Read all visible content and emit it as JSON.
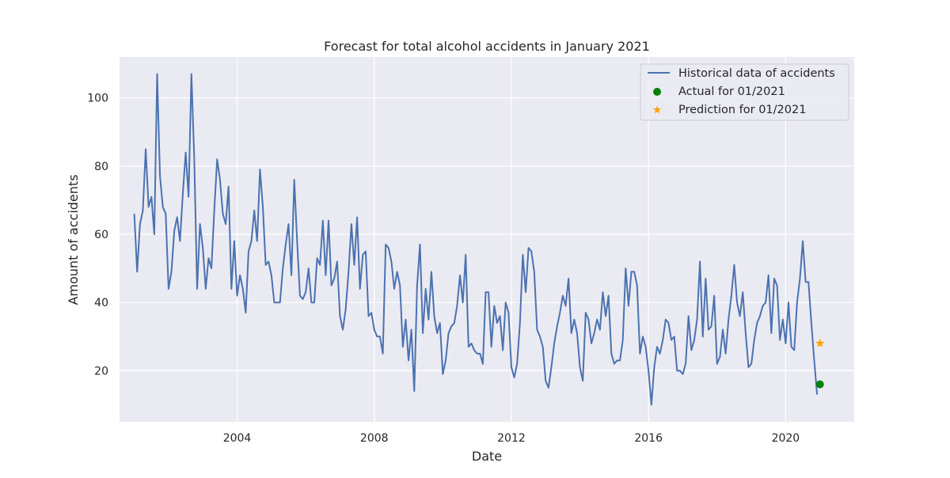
{
  "chart_data": {
    "type": "line",
    "title": "Forecast for total alcohol accidents in January 2021",
    "xlabel": "Date",
    "ylabel": "Amount of accidents",
    "x_ticks": [
      "2004",
      "2008",
      "2012",
      "2016",
      "2020"
    ],
    "y_ticks": [
      "20",
      "40",
      "60",
      "80",
      "100"
    ],
    "xlim": [
      2000.57,
      2022.0
    ],
    "ylim": [
      5.0,
      112.0
    ],
    "grid": true,
    "legend_position": "top-right",
    "start": "2001-01",
    "series": [
      {
        "name": "Historical data of accidents",
        "kind": "line",
        "color": "#4c72b0",
        "values": [
          66,
          49,
          63,
          67,
          85,
          68,
          71,
          60,
          107,
          77,
          68,
          66,
          44,
          49,
          61,
          65,
          58,
          72,
          84,
          71,
          107,
          82,
          44,
          63,
          56,
          44,
          53,
          50,
          67,
          82,
          76,
          66,
          63,
          74,
          44,
          58,
          42,
          48,
          44,
          37,
          55,
          58,
          67,
          58,
          79,
          68,
          51,
          52,
          48,
          40,
          40,
          40,
          50,
          57,
          63,
          48,
          76,
          58,
          42,
          41,
          43,
          50,
          40,
          40,
          53,
          51,
          64,
          48,
          64,
          45,
          47,
          52,
          36,
          32,
          38,
          49,
          63,
          51,
          65,
          44,
          54,
          55,
          36,
          37,
          32,
          30,
          30,
          25,
          57,
          56,
          52,
          44,
          49,
          45,
          27,
          35,
          23,
          32,
          14,
          45,
          57,
          31,
          44,
          35,
          49,
          36,
          31,
          34,
          19,
          23,
          31,
          33,
          34,
          39,
          48,
          40,
          54,
          27,
          28,
          26,
          25,
          25,
          22,
          43,
          43,
          27,
          39,
          34,
          36,
          26,
          40,
          37,
          21,
          18,
          22,
          34,
          54,
          43,
          56,
          55,
          49,
          32,
          30,
          27,
          17,
          15,
          21,
          28,
          33,
          37,
          42,
          39,
          47,
          31,
          35,
          31,
          21,
          17,
          37,
          35,
          28,
          31,
          35,
          32,
          43,
          36,
          42,
          25,
          22,
          23,
          23,
          29,
          50,
          39,
          49,
          49,
          45,
          25,
          30,
          27,
          20,
          10,
          21,
          27,
          25,
          29,
          35,
          34,
          29,
          30,
          20,
          20,
          19,
          22,
          36,
          26,
          29,
          35,
          52,
          30,
          47,
          32,
          33,
          42,
          22,
          24,
          32,
          25,
          35,
          42,
          51,
          40,
          36,
          43,
          31,
          21,
          22,
          29,
          34,
          36,
          39,
          40,
          48,
          31,
          47,
          45,
          29,
          35,
          28,
          40,
          27,
          26,
          40,
          47,
          58,
          46,
          46,
          34,
          23,
          13
        ]
      },
      {
        "name": "Actual for 01/2021",
        "kind": "point",
        "color": "#008000",
        "x": "2021-01",
        "y": 16
      },
      {
        "name": "Prediction for 01/2021",
        "kind": "star",
        "color": "#ffa500",
        "x": "2021-01",
        "y": 28
      }
    ],
    "colors": {
      "background": "#eaeaf2",
      "grid": "#ffffff",
      "text": "#262626"
    }
  }
}
